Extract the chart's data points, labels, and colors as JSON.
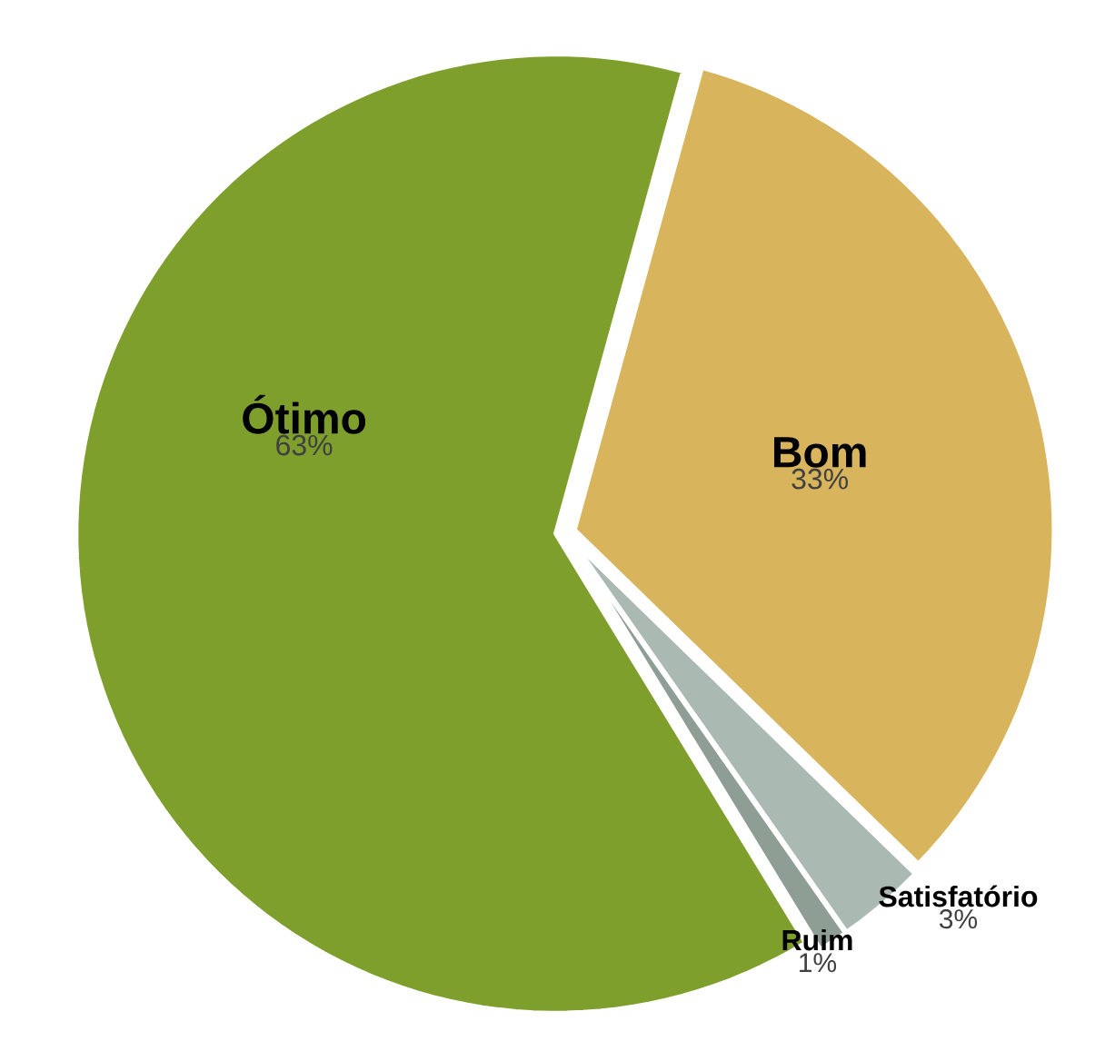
{
  "chart_data": {
    "type": "pie",
    "categories": [
      "Bom",
      "Satisfatório",
      "Ruim",
      "Ótimo"
    ],
    "values": [
      33,
      3,
      1,
      63
    ],
    "value_labels": [
      "33%",
      "3%",
      "1%",
      "63%"
    ],
    "colors": [
      "#d8b45c",
      "#aab9b2",
      "#8f9e94",
      "#7f9f2c"
    ]
  }
}
